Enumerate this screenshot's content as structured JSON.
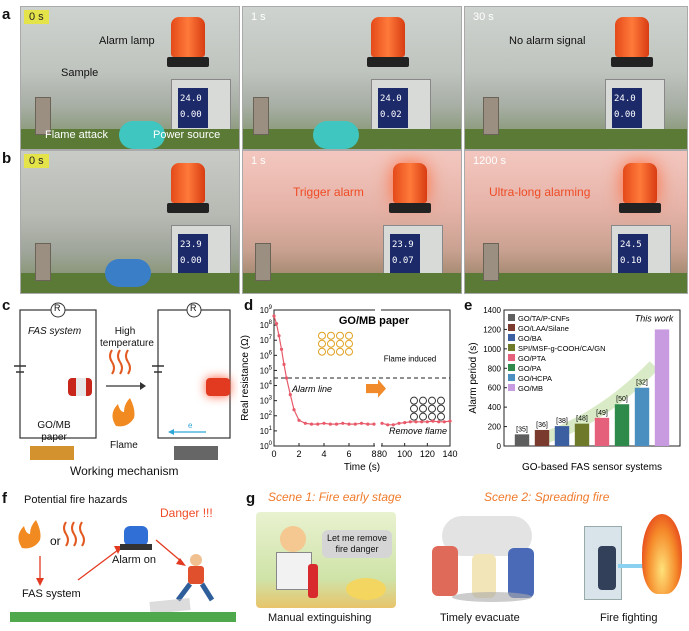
{
  "panels": {
    "a": "a",
    "b": "b",
    "c": "c",
    "d": "d",
    "e": "e",
    "f": "f",
    "g": "g"
  },
  "row_a": {
    "times": [
      "0 s",
      "1 s",
      "30 s"
    ],
    "labels": {
      "alarm_lamp": "Alarm lamp",
      "sample": "Sample",
      "flame_attack": "Flame attack",
      "power_source": "Power source",
      "no_alarm": "No alarm signal"
    },
    "readouts": [
      [
        "24.0",
        "0.00"
      ],
      [
        "24.0",
        "0.02"
      ],
      [
        "24.0",
        "0.00"
      ]
    ]
  },
  "row_b": {
    "times": [
      "0 s",
      "1 s",
      "1200 s"
    ],
    "labels": {
      "trigger": "Trigger  alarm",
      "ultra": "Ultra-long alarming"
    },
    "readouts": [
      [
        "23.9",
        "0.00"
      ],
      [
        "23.9",
        "0.07"
      ],
      [
        "24.5",
        "0.10"
      ]
    ]
  },
  "panel_c": {
    "fas_system": "FAS system",
    "high_temp": "High temperature",
    "paper": "GO/MB paper",
    "flame": "Flame",
    "resistor": "R",
    "electron": "e",
    "caption": "Working mechanism"
  },
  "chart_data": [
    {
      "type": "line",
      "title": "GO/MB paper",
      "xlabel": "Time (s)",
      "ylabel": "Real resistance (Ω)",
      "x_ticks": [
        "0",
        "2",
        "4",
        "6",
        "8",
        "80",
        "100",
        "120",
        "140"
      ],
      "y_ticks": [
        "10^0",
        "10^1",
        "10^2",
        "10^3",
        "10^4",
        "10^5",
        "10^6",
        "10^7",
        "10^8",
        "10^9"
      ],
      "ylim_log10": [
        0,
        9
      ],
      "alarm_line_log10": 4.5,
      "annotations": {
        "alarm_line": "Alarm line",
        "flame_induced": "Flame induced",
        "remove_flame": "Remove flame"
      },
      "series": [
        {
          "x": [
            0,
            0.2,
            0.4,
            0.6,
            0.8,
            1.0,
            1.3,
            1.6,
            2.0,
            2.5,
            3,
            3.5,
            4,
            4.5,
            5,
            5.5,
            6,
            6.5,
            7,
            7.5,
            8,
            80,
            85,
            90,
            95,
            100,
            105,
            110,
            115,
            120,
            125,
            130,
            135,
            140
          ],
          "log10_y": [
            8.6,
            8.1,
            7.3,
            6.4,
            5.4,
            4.5,
            3.4,
            2.4,
            1.7,
            1.5,
            1.45,
            1.45,
            1.5,
            1.45,
            1.45,
            1.5,
            1.45,
            1.45,
            1.5,
            1.45,
            1.45,
            1.5,
            1.4,
            1.4,
            1.5,
            1.55,
            1.6,
            1.6,
            1.6,
            1.6,
            1.65,
            1.6,
            1.6,
            1.65
          ]
        }
      ]
    },
    {
      "type": "bar",
      "title": "",
      "xlabel": "GO-based FAS sensor systems",
      "ylabel": "Alarm period (s)",
      "ylim": [
        0,
        1400
      ],
      "y_ticks": [
        0,
        200,
        400,
        600,
        800,
        1000,
        1200,
        1400
      ],
      "categories": [
        "GO/TA/P-CNFs",
        "GO/LAA/Silane",
        "GO/BA",
        "SPI/MSF-g-COOH/CA/GN",
        "GO/PTA",
        "GO/PA",
        "GO/HCPA",
        "GO/MB"
      ],
      "values": [
        120,
        165,
        205,
        230,
        290,
        430,
        600,
        1200
      ],
      "refs": [
        "[35]",
        "[36]",
        "[38]",
        "[48]",
        "[49]",
        "[50]",
        "[32]",
        ""
      ],
      "colors": [
        "#5e5e5e",
        "#7a3b2e",
        "#3b5fa0",
        "#6e7a2a",
        "#e5607a",
        "#2e8a4a",
        "#4a8fc0",
        "#c89ae0"
      ],
      "annotation": "This work"
    }
  ],
  "panel_f": {
    "title": "Potential fire hazards",
    "or": "or",
    "fas": "FAS system",
    "alarm": "Alarm on",
    "danger": "Danger !!!"
  },
  "panel_g": {
    "scene1": "Scene 1:  Fire early stage",
    "scene2": "Scene 2:  Spreading fire",
    "speech": "Let me remove fire danger",
    "cap1": "Manual extinguishing",
    "cap2": "Timely evacuate",
    "cap3": "Fire fighting"
  }
}
